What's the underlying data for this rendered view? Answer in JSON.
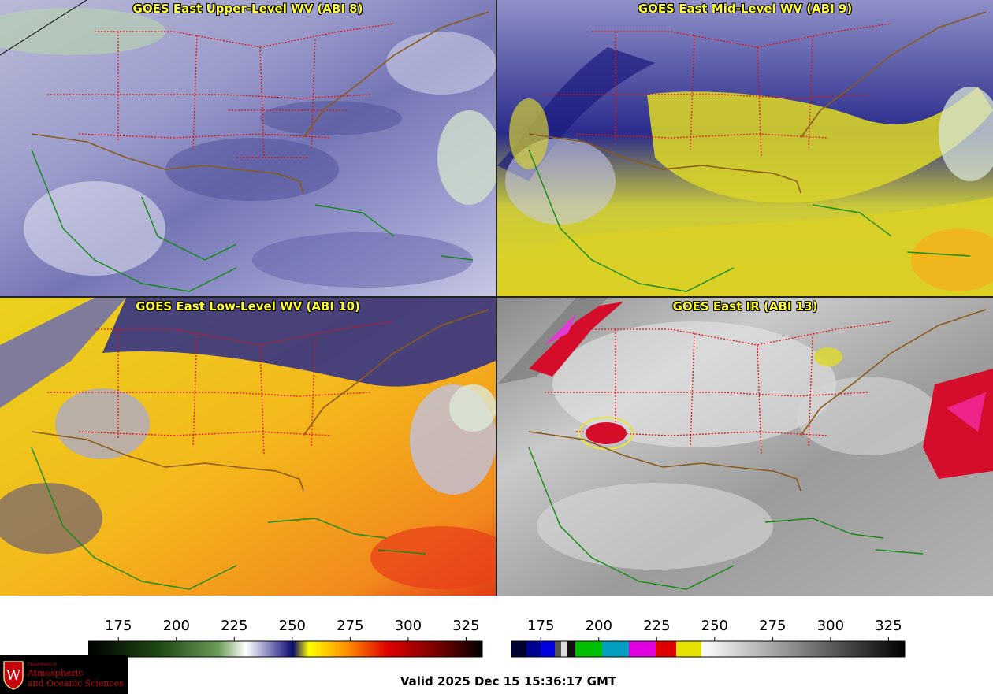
{
  "panels": {
    "upper": {
      "title": "GOES East Upper-Level WV (ABI 8)"
    },
    "mid": {
      "title": "GOES East Mid-Level WV (ABI 9)"
    },
    "low": {
      "title": "GOES East Low-Level WV (ABI 10)"
    },
    "ir": {
      "title": "GOES East IR (ABI 13)"
    }
  },
  "colorbar_left": {
    "ticks": [
      "175",
      "200",
      "225",
      "250",
      "275",
      "300",
      "325"
    ]
  },
  "colorbar_right": {
    "ticks": [
      "175",
      "200",
      "225",
      "250",
      "275",
      "300",
      "325"
    ]
  },
  "valid_time": "Valid 2025 Dec 15 15:36:17 GMT",
  "logo": {
    "dept": "Department of",
    "line1": "Atmospheric",
    "line2": "and Oceanic Sciences"
  },
  "colors": {
    "title_text": "#ffff33",
    "state_borders": "#e01010",
    "coast_land": "#8a5a1a",
    "coast_sea": "#108a10",
    "logo_red": "#c5050c"
  }
}
